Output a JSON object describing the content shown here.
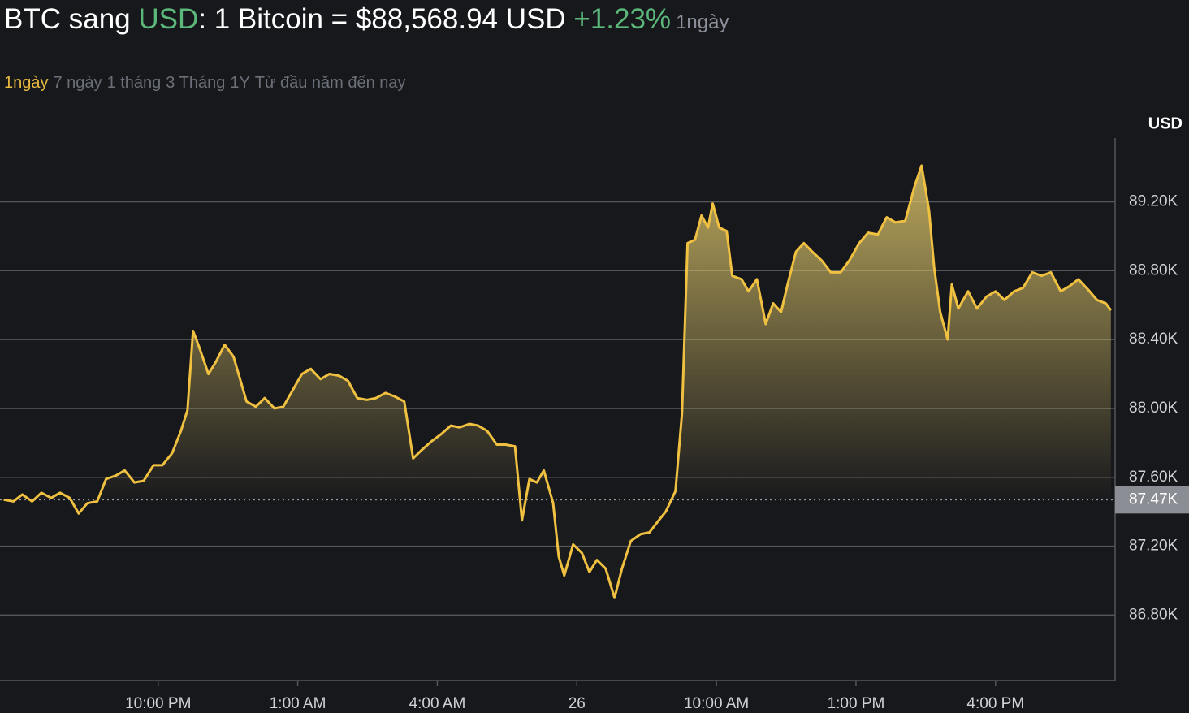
{
  "header": {
    "title_parts": [
      "BTC sang ",
      "USD",
      ": 1 Bitcoin = $88,568.94 USD"
    ],
    "change": "+1.23%",
    "period": "1ngày"
  },
  "tabs": [
    "1ngày",
    "7 ngày",
    "1 tháng",
    "3 Tháng",
    "1Y",
    "Từ đầu năm đến nay"
  ],
  "chart_data": {
    "type": "area",
    "y_axis_label": "USD",
    "color": "#f0c041",
    "x": [
      18.68,
      18.89,
      19.08,
      19.29,
      19.49,
      19.7,
      19.89,
      20.1,
      20.29,
      20.48,
      20.69,
      20.88,
      21.09,
      21.28,
      21.49,
      21.69,
      21.9,
      22.09,
      22.3,
      22.49,
      22.63,
      22.75,
      22.89,
      23.08,
      23.24,
      23.43,
      23.62,
      23.75,
      23.9,
      24.1,
      24.29,
      24.5,
      24.69,
      24.9,
      25.09,
      25.28,
      25.49,
      25.68,
      25.89,
      26.08,
      26.28,
      26.49,
      26.68,
      26.89,
      27.08,
      27.29,
      27.48,
      27.67,
      27.88,
      28.08,
      28.29,
      28.48,
      28.69,
      28.88,
      29.07,
      29.28,
      29.47,
      29.67,
      29.82,
      29.98,
      30.14,
      30.29,
      30.49,
      30.61,
      30.73,
      30.92,
      31.11,
      31.27,
      31.43,
      31.62,
      31.81,
      31.97,
      32.16,
      32.37,
      32.56,
      32.76,
      32.91,
      33.12,
      33.26,
      33.38,
      33.54,
      33.68,
      33.82,
      33.92,
      34.06,
      34.22,
      34.34,
      34.54,
      34.69,
      34.87,
      35.06,
      35.22,
      35.39,
      35.53,
      35.71,
      35.88,
      36.06,
      36.26,
      36.46,
      36.67,
      36.86,
      37.07,
      37.26,
      37.47,
      37.66,
      37.85,
      38.06,
      38.26,
      38.41,
      38.57,
      38.68,
      38.81,
      38.97,
      39.06,
      39.2,
      39.41,
      39.6,
      39.81,
      40.0,
      40.19,
      40.4,
      40.59,
      40.79,
      40.99,
      41.19,
      41.4,
      41.59,
      41.78,
      41.99,
      42.18,
      42.37,
      42.48
    ],
    "values": [
      87470,
      87460,
      87500,
      87460,
      87510,
      87480,
      87510,
      87480,
      87390,
      87450,
      87460,
      87590,
      87610,
      87640,
      87570,
      87580,
      87670,
      87670,
      87740,
      87870,
      87990,
      88450,
      88350,
      88200,
      88270,
      88370,
      88300,
      88180,
      88040,
      88010,
      88060,
      88000,
      88010,
      88110,
      88200,
      88230,
      88170,
      88200,
      88190,
      88160,
      88060,
      88050,
      88060,
      88090,
      88070,
      88040,
      87710,
      87760,
      87810,
      87850,
      87900,
      87890,
      87910,
      87900,
      87870,
      87790,
      87790,
      87780,
      87350,
      87590,
      87570,
      87640,
      87450,
      87140,
      87030,
      87210,
      87160,
      87050,
      87120,
      87070,
      86900,
      87070,
      87230,
      87270,
      87280,
      87350,
      87400,
      87520,
      87970,
      88960,
      88980,
      89120,
      89050,
      89190,
      89050,
      89030,
      88770,
      88750,
      88680,
      88750,
      88490,
      88610,
      88560,
      88720,
      88910,
      88960,
      88910,
      88860,
      88790,
      88790,
      88860,
      88960,
      89020,
      89010,
      89110,
      89080,
      89090,
      89290,
      89410,
      89150,
      88820,
      88560,
      88400,
      88720,
      88580,
      88680,
      88580,
      88650,
      88680,
      88630,
      88680,
      88700,
      88790,
      88770,
      88790,
      88680,
      88710,
      88750,
      88690,
      88630,
      88610,
      88570
    ],
    "xlim": [
      18.6,
      42.57
    ],
    "xticks": [
      {
        "value": 22,
        "label": "10:00 PM"
      },
      {
        "value": 25,
        "label": "1:00 AM"
      },
      {
        "value": 28,
        "label": "4:00 AM"
      },
      {
        "value": 31,
        "label": "26"
      },
      {
        "value": 34,
        "label": "10:00 AM"
      },
      {
        "value": 37,
        "label": "1:00 PM"
      },
      {
        "value": 40,
        "label": "4:00 PM"
      }
    ],
    "ylim": [
      86420,
      89570
    ],
    "yticks": [
      {
        "value": 86800,
        "label": "86.80K"
      },
      {
        "value": 87200,
        "label": "87.20K"
      },
      {
        "value": 87600,
        "label": "87.60K"
      },
      {
        "value": 88000,
        "label": "88.00K"
      },
      {
        "value": 88400,
        "label": "88.40K"
      },
      {
        "value": 88800,
        "label": "88.80K"
      },
      {
        "value": 89200,
        "label": "89.20K"
      }
    ],
    "baseline": {
      "value": 87470,
      "label": "87.47K"
    },
    "grid": true
  }
}
